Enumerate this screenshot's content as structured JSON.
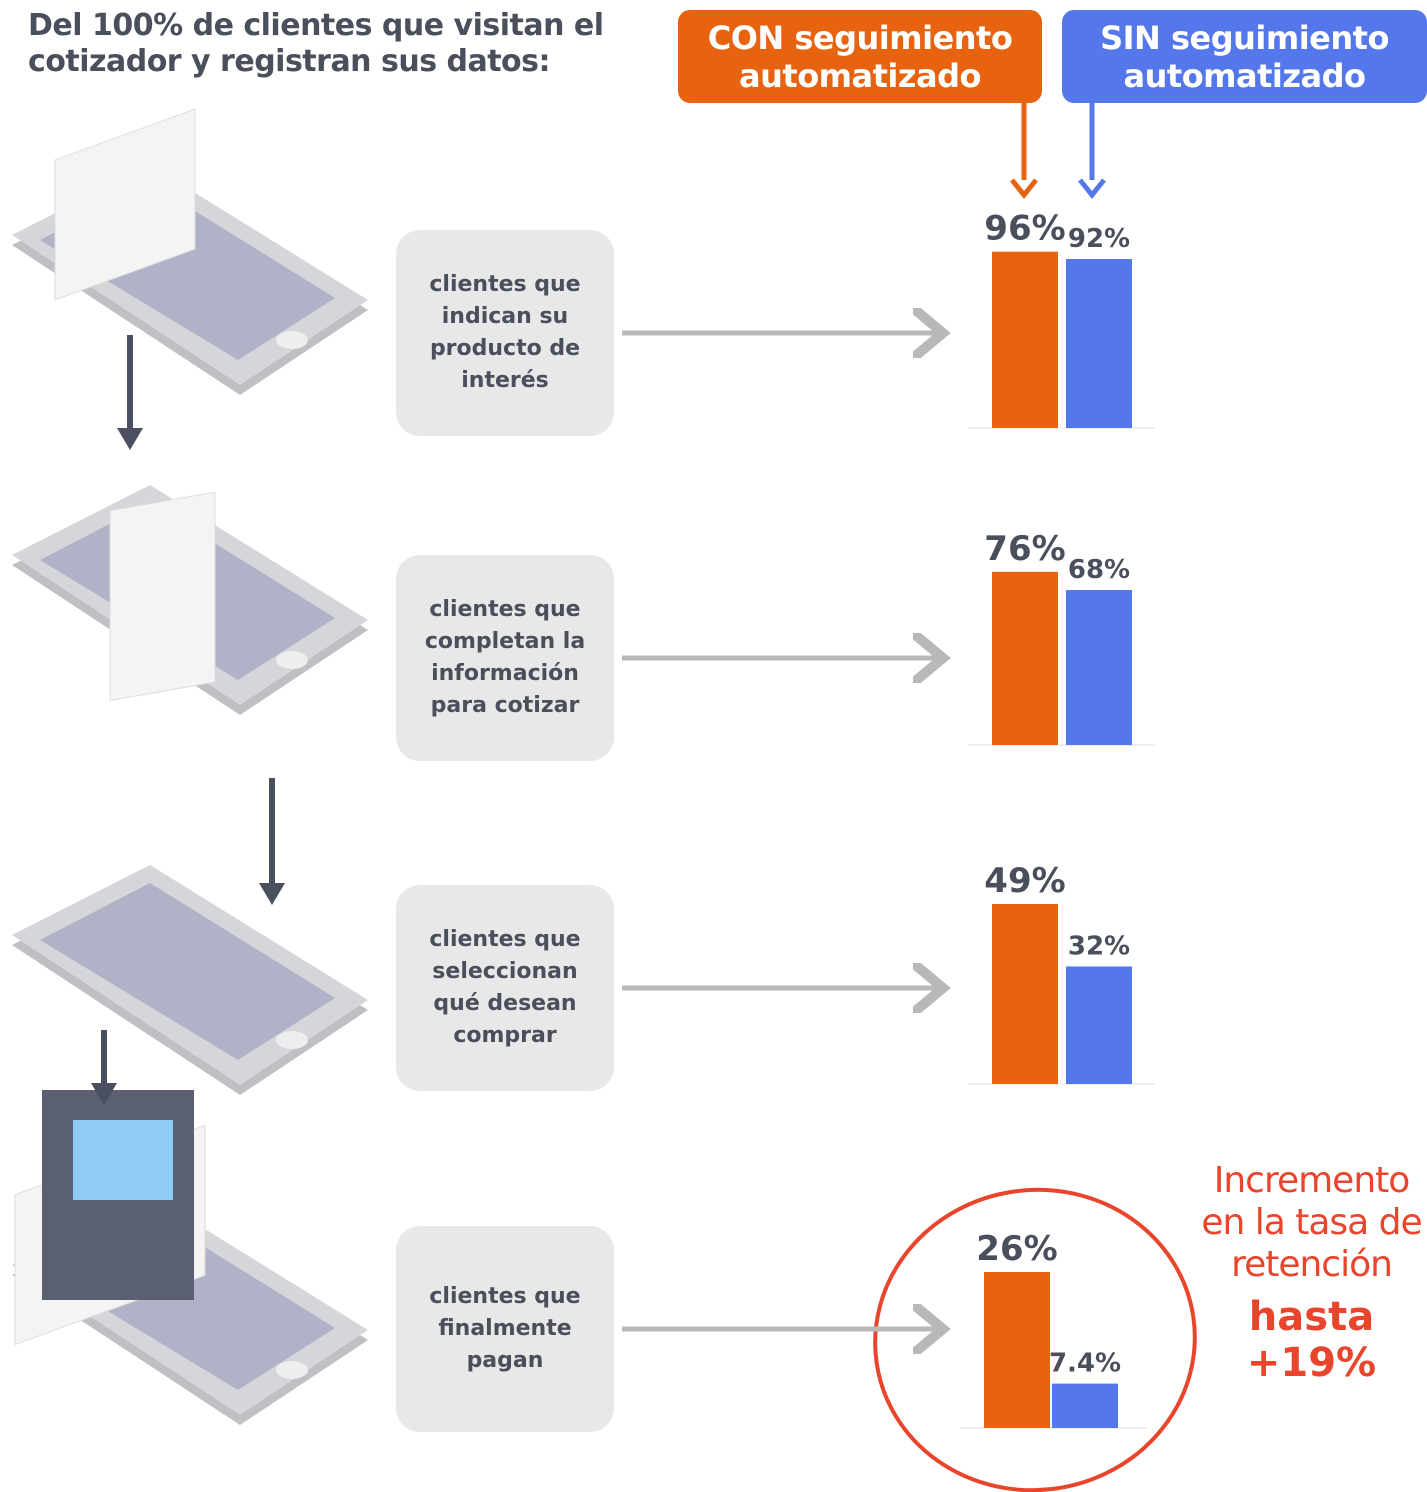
{
  "title": "Del 100% de clientes que visitan el cotizador y registran sus datos:",
  "series": [
    {
      "name": "CON seguimiento automatizado",
      "color": "#e8630f"
    },
    {
      "name": "SIN seguimiento automatizado",
      "color": "#5577ec"
    }
  ],
  "chart_data": [
    {
      "type": "bar",
      "title": "clientes que indican su producto de interés",
      "values": [
        96,
        92
      ],
      "value_labels": [
        "96%",
        "92%"
      ],
      "ylim": [
        0,
        98
      ]
    },
    {
      "type": "bar",
      "title": "clientes que completan la información para cotizar",
      "values": [
        76,
        68
      ],
      "value_labels": [
        "76%",
        "68%"
      ],
      "ylim": [
        0,
        79
      ]
    },
    {
      "type": "bar",
      "title": "clientes que seleccionan qué desean comprar",
      "values": [
        49,
        32
      ],
      "value_labels": [
        "49%",
        "32%"
      ],
      "ylim": [
        0,
        49
      ]
    },
    {
      "type": "bar",
      "title": "clientes que finalmente pagan",
      "values": [
        26,
        7.4
      ],
      "value_labels": [
        "26%",
        "7.4%"
      ],
      "ylim": [
        0,
        30
      ]
    }
  ],
  "annotation": {
    "text": "Incremento en la tasa de retención",
    "highlight": "hasta +19%",
    "color": "#e8452c"
  }
}
